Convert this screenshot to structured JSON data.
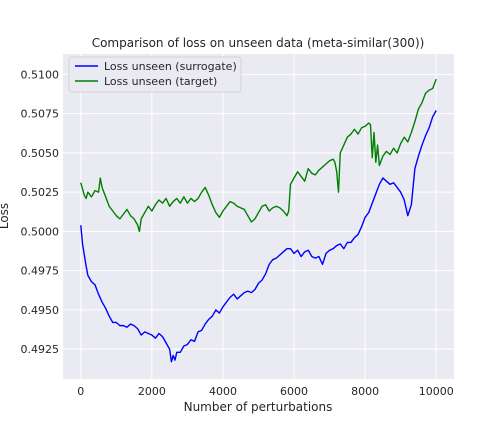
{
  "chart_data": {
    "type": "line",
    "title": "Comparison of loss on unseen data (meta-similar(300))",
    "xlabel": "Number of perturbations",
    "ylabel": "Loss",
    "xlim": [
      -500,
      10500
    ],
    "ylim": [
      0.4906,
      0.5113
    ],
    "xticks": [
      0,
      2000,
      4000,
      6000,
      8000,
      10000
    ],
    "xtick_labels": [
      "0",
      "2000",
      "4000",
      "6000",
      "8000",
      "10000"
    ],
    "yticks": [
      0.4925,
      0.495,
      0.4975,
      0.5,
      0.5025,
      0.505,
      0.5075,
      0.51
    ],
    "ytick_labels": [
      "0.4925",
      "0.4950",
      "0.4975",
      "0.5000",
      "0.5025",
      "0.5050",
      "0.5075",
      "0.5100"
    ],
    "grid": true,
    "legend_position": "top-left",
    "series": [
      {
        "name": "Loss unseen (surrogate)",
        "color": "#0000ff",
        "x": [
          0,
          50,
          100,
          150,
          200,
          300,
          400,
          500,
          600,
          700,
          800,
          900,
          1000,
          1100,
          1200,
          1300,
          1400,
          1500,
          1600,
          1700,
          1800,
          1900,
          2000,
          2100,
          2200,
          2300,
          2400,
          2500,
          2550,
          2600,
          2650,
          2700,
          2800,
          2900,
          3000,
          3100,
          3200,
          3300,
          3400,
          3500,
          3600,
          3700,
          3800,
          3900,
          4000,
          4100,
          4200,
          4300,
          4400,
          4500,
          4600,
          4700,
          4800,
          4900,
          5000,
          5100,
          5200,
          5300,
          5400,
          5500,
          5600,
          5700,
          5800,
          5900,
          6000,
          6100,
          6200,
          6300,
          6400,
          6500,
          6600,
          6700,
          6800,
          6900,
          7000,
          7100,
          7200,
          7300,
          7400,
          7500,
          7600,
          7700,
          7800,
          7900,
          8000,
          8100,
          8200,
          8300,
          8400,
          8500,
          8600,
          8700,
          8800,
          8900,
          9000,
          9100,
          9200,
          9300,
          9400,
          9500,
          9600,
          9700,
          9800,
          9900,
          10000
        ],
        "y": [
          0.5004,
          0.4992,
          0.4985,
          0.4978,
          0.4972,
          0.4968,
          0.4966,
          0.496,
          0.4955,
          0.4951,
          0.4946,
          0.4942,
          0.4942,
          0.494,
          0.494,
          0.4939,
          0.4941,
          0.494,
          0.4938,
          0.4934,
          0.4936,
          0.4935,
          0.4934,
          0.4932,
          0.4935,
          0.4933,
          0.4929,
          0.4925,
          0.4917,
          0.4921,
          0.4918,
          0.4923,
          0.4923,
          0.4927,
          0.4928,
          0.4931,
          0.493,
          0.4936,
          0.4937,
          0.4941,
          0.4944,
          0.4946,
          0.495,
          0.4948,
          0.4952,
          0.4955,
          0.4958,
          0.496,
          0.4957,
          0.4959,
          0.4961,
          0.4962,
          0.4961,
          0.4963,
          0.4967,
          0.4969,
          0.4973,
          0.4979,
          0.4982,
          0.4983,
          0.4985,
          0.4987,
          0.4989,
          0.4989,
          0.4986,
          0.4988,
          0.4984,
          0.4987,
          0.4988,
          0.4984,
          0.4983,
          0.4984,
          0.4979,
          0.4986,
          0.4988,
          0.4989,
          0.4991,
          0.4992,
          0.4989,
          0.4993,
          0.4993,
          0.4996,
          0.4998,
          0.5003,
          0.5009,
          0.5012,
          0.5018,
          0.5024,
          0.503,
          0.5034,
          0.5032,
          0.503,
          0.5031,
          0.5028,
          0.5025,
          0.502,
          0.501,
          0.5017,
          0.504,
          0.5048,
          0.5055,
          0.5061,
          0.5066,
          0.5073,
          0.5077
        ]
      },
      {
        "name": "Loss unseen (target)",
        "color": "#008000",
        "x": [
          0,
          50,
          100,
          150,
          200,
          300,
          400,
          500,
          550,
          600,
          700,
          800,
          900,
          1000,
          1100,
          1200,
          1300,
          1400,
          1500,
          1600,
          1650,
          1700,
          1800,
          1900,
          2000,
          2100,
          2200,
          2300,
          2400,
          2500,
          2600,
          2700,
          2800,
          2900,
          3000,
          3100,
          3200,
          3300,
          3400,
          3500,
          3600,
          3700,
          3800,
          3900,
          4000,
          4100,
          4200,
          4300,
          4400,
          4500,
          4600,
          4700,
          4800,
          4900,
          5000,
          5100,
          5200,
          5300,
          5400,
          5500,
          5600,
          5700,
          5800,
          5850,
          5900,
          6000,
          6100,
          6200,
          6300,
          6400,
          6500,
          6600,
          6700,
          6800,
          6900,
          7000,
          7100,
          7150,
          7200,
          7250,
          7300,
          7400,
          7500,
          7600,
          7700,
          7800,
          7900,
          8000,
          8100,
          8150,
          8200,
          8250,
          8300,
          8350,
          8400,
          8500,
          8600,
          8700,
          8800,
          8900,
          9000,
          9100,
          9200,
          9300,
          9400,
          9500,
          9600,
          9700,
          9800,
          9900,
          10000
        ],
        "y": [
          0.5031,
          0.5027,
          0.5023,
          0.5021,
          0.5025,
          0.5022,
          0.5026,
          0.5025,
          0.5034,
          0.5028,
          0.5022,
          0.5016,
          0.5013,
          0.501,
          0.5008,
          0.5011,
          0.5014,
          0.501,
          0.5008,
          0.5004,
          0.5,
          0.5008,
          0.5012,
          0.5016,
          0.5013,
          0.5017,
          0.502,
          0.5018,
          0.5021,
          0.5016,
          0.5019,
          0.5021,
          0.5018,
          0.5022,
          0.5018,
          0.5021,
          0.5019,
          0.5021,
          0.5025,
          0.5028,
          0.5023,
          0.5017,
          0.5012,
          0.5009,
          0.5013,
          0.5016,
          0.5019,
          0.5018,
          0.5016,
          0.5015,
          0.5014,
          0.501,
          0.5006,
          0.5008,
          0.5012,
          0.5016,
          0.5017,
          0.5013,
          0.5015,
          0.5016,
          0.5015,
          0.5013,
          0.501,
          0.5013,
          0.503,
          0.5034,
          0.5038,
          0.5035,
          0.5032,
          0.504,
          0.5037,
          0.5036,
          0.5039,
          0.5041,
          0.5043,
          0.5045,
          0.5046,
          0.5044,
          0.5038,
          0.5025,
          0.505,
          0.5055,
          0.506,
          0.5062,
          0.5065,
          0.5062,
          0.5066,
          0.5067,
          0.5069,
          0.5068,
          0.5047,
          0.5063,
          0.5044,
          0.5055,
          0.5042,
          0.5048,
          0.5051,
          0.5049,
          0.5053,
          0.505,
          0.5056,
          0.506,
          0.5057,
          0.5063,
          0.507,
          0.5078,
          0.5082,
          0.5088,
          0.509,
          0.5091,
          0.5097
        ]
      }
    ]
  }
}
